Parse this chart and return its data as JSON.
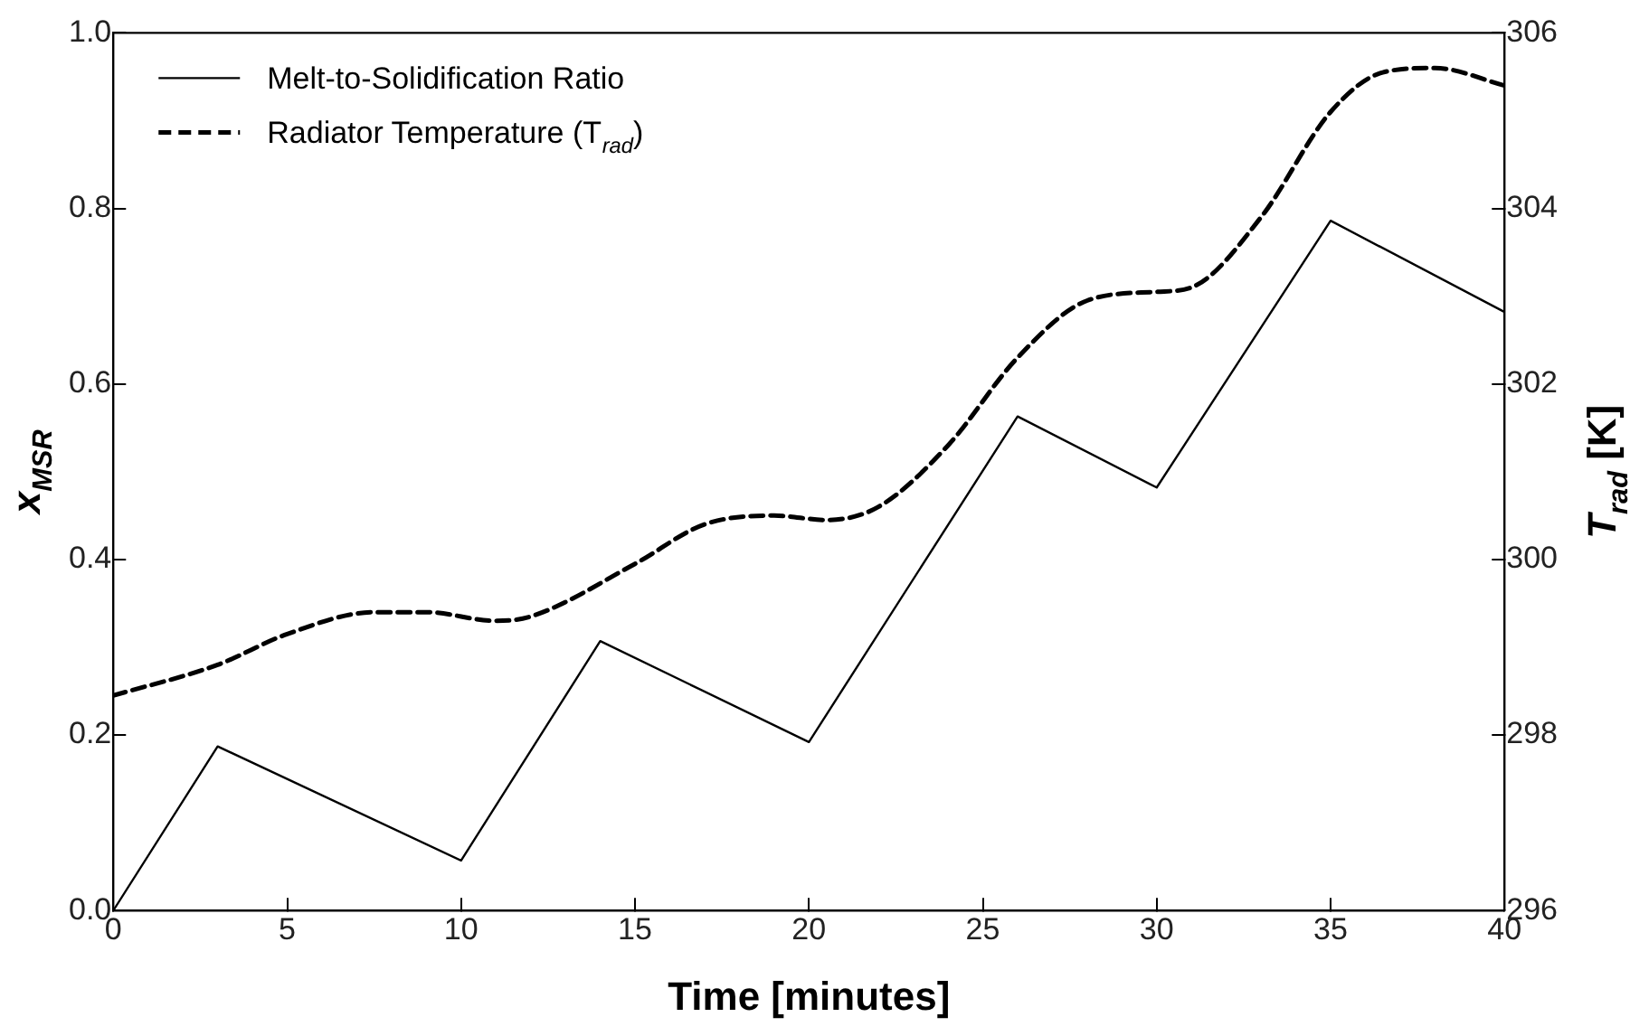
{
  "chart_data": {
    "type": "line",
    "xlabel": "Time [minutes]",
    "ylabel": "x$_{MSR}$",
    "y2label": "T$_{rad}$ [K]",
    "xlim": [
      0,
      40
    ],
    "xticks": [
      0,
      5,
      10,
      15,
      20,
      25,
      30,
      35,
      40
    ],
    "ylim": [
      0,
      1
    ],
    "yticks": [
      {
        "value": 0,
        "label": "0.0"
      },
      {
        "value": 0.2,
        "label": "0.2"
      },
      {
        "value": 0.4,
        "label": "0.4"
      },
      {
        "value": 0.6,
        "label": "0.6"
      },
      {
        "value": 0.8,
        "label": "0.8"
      },
      {
        "value": 1,
        "label": "1.0"
      }
    ],
    "y2lim": [
      296,
      306
    ],
    "y2ticks": [
      296,
      298,
      300,
      302,
      304,
      306
    ],
    "legend": "top left",
    "grid": false,
    "marker": "none",
    "series": [
      {
        "name": "Melt-to-Solidification Ratio",
        "color": "#000000",
        "line_style": "solid",
        "x": [
          0,
          3,
          10,
          14,
          20,
          26,
          30,
          35,
          40
        ],
        "values": [
          0,
          0.187,
          0.057,
          0.307,
          0.192,
          0.563,
          0.482,
          0.786,
          0.682
        ]
      },
      {
        "name": "Radiator Temperature (T$_{rad}$)",
        "color": "#000000",
        "line_style": "dashed",
        "axis": "y2",
        "x": [
          0,
          3,
          5,
          7.5,
          9,
          11,
          12,
          15,
          17,
          19,
          20.5,
          22,
          24,
          26,
          28,
          30,
          31,
          33,
          35,
          36.5,
          38,
          40
        ],
        "values": [
          298.45,
          298.8,
          299.15,
          299.4,
          299.4,
          299.3,
          299.35,
          299.95,
          300.4,
          300.5,
          300.45,
          300.6,
          301.3,
          302.3,
          302.95,
          303.05,
          303.1,
          303.9,
          305.1,
          305.55,
          305.6,
          305.4
        ]
      }
    ]
  }
}
